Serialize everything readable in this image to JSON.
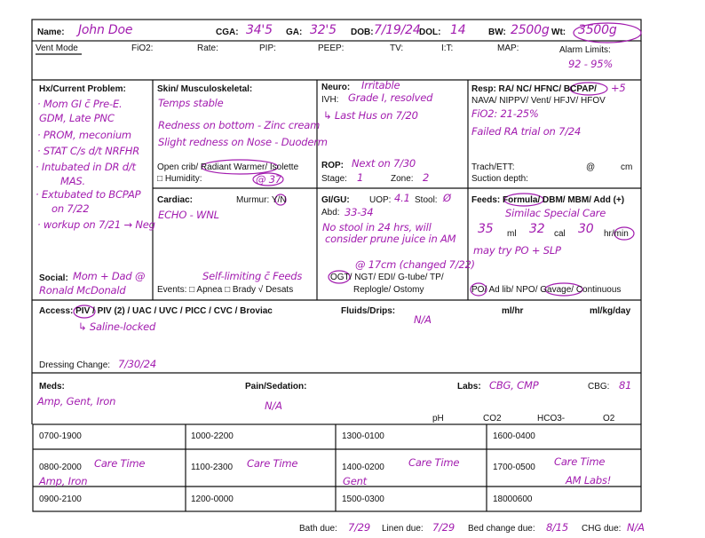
{
  "header": {
    "name_label": "Name:",
    "name": "John Doe",
    "cga_label": "CGA:",
    "cga": "34'5",
    "ga_label": "GA:",
    "ga": "32'5",
    "dob_label": "DOB:",
    "dob": "7/19/24",
    "dol_label": "DOL:",
    "dol": "14",
    "bw_label": "BW:",
    "bw": "2500g",
    "wt_label": "Wt:",
    "wt": "3500g"
  },
  "vent": {
    "mode": "Vent Mode",
    "fio2": "FiO2:",
    "rate": "Rate:",
    "pip": "PIP:",
    "peep": "PEEP:",
    "tv": "TV:",
    "it": "I:T:",
    "map": "MAP:",
    "alarm_label": "Alarm Limits:",
    "alarm": "92 - 95%"
  },
  "hx": {
    "label": "Hx/Current Problem:",
    "notes": [
      "· Mom GI c̄ Pre-E.",
      "GDM, Late PNC",
      "· PROM, meconium",
      "· STAT C/s d/t NRFHR",
      "· Intubated in DR d/t",
      "MAS.",
      "· Extubated to BCPAP",
      "on 7/22",
      "· workup on 7/21 → Neg"
    ]
  },
  "social": {
    "label": "Social:",
    "notes": [
      "Mom + Dad @",
      "Ronald McDonald"
    ]
  },
  "skin": {
    "label": "Skin/ Musculoskeletal:",
    "notes": [
      "Temps stable",
      "Redness on bottom - Zinc cream",
      "Slight redness on Nose - Duoderm"
    ],
    "bed": "Open crib/ Radiant Warmer/ Isolette",
    "humidity": "□ Humidity:",
    "humidity_value": "@ 37"
  },
  "cardiac": {
    "label": "Cardiac:",
    "murmur": "Murmur: Y/N",
    "note": "ECHO - WNL",
    "events_note": "Self-limiting c̄ Feeds",
    "events": "Events: □ Apnea □ Brady √ Desats"
  },
  "neuro": {
    "label": "Neuro:",
    "value": "Irritable",
    "ivh_label": "IVH:",
    "ivh": "Grade I, resolved",
    "hus": "↳ Last Hus on 7/20",
    "rop_label": "ROP:",
    "rop": "Next on 7/30",
    "stage_label": "Stage:",
    "stage": "1",
    "zone_label": "Zone:",
    "zone": "2"
  },
  "gi": {
    "label": "GI/GU:",
    "uop_label": "UOP:",
    "uop": "4.1",
    "stool_label": "Stool:",
    "stool": "Ø",
    "abd_label": "Abd:",
    "abd": "33-34",
    "notes": [
      "No stool in 24 hrs, will",
      "consider prune juice in AM"
    ],
    "tube_note": "@ 17cm (changed 7/22)",
    "tubes": [
      "OGT/ NGT/ EDI/ G-tube/ TP/",
      "Replogle/ Ostomy"
    ]
  },
  "resp": {
    "options": [
      "Resp: RA/ NC/ HFNC/ BCPAP/",
      "NAVA/ NIPPV/ Vent/ HFJV/ HFOV"
    ],
    "peep": "+5",
    "fio2": "FiO2: 21-25%",
    "note": "Failed RA trial on 7/24",
    "trach": "Trach/ETT:",
    "at": "@",
    "cm": "cm",
    "suction": "Suction depth:"
  },
  "feeds": {
    "options": "Feeds: Formula/ DBM/ MBM/ Add (+)",
    "formula": "Similac Special Care",
    "ml": "35",
    "ml_label": "ml",
    "cal": "32",
    "cal_label": "cal",
    "rate": "30",
    "rate_label": "hr/min",
    "note": "may try PO + SLP",
    "route": "PO/ Ad lib/ NPO/ Gavage/ Continuous"
  },
  "access": {
    "options": "Access: PIV / PIV (2) / UAC / UVC / PICC / CVC / Broviac",
    "note": "↳ Saline-locked",
    "fluids_label": "Fluids/Drips:",
    "fluids": "N/A",
    "mlhr": "ml/hr",
    "mlkgday": "ml/kg/day",
    "dressing_label": "Dressing Change:",
    "dressing": "7/30/24"
  },
  "meds": {
    "label": "Meds:",
    "value": "Amp, Gent, Iron",
    "pain_label": "Pain/Sedation:",
    "pain": "N/A",
    "labs_label": "Labs:",
    "labs": "CBG, CMP",
    "cbg_label": "CBG:",
    "cbg": "81",
    "gas": [
      "pH",
      "CO2",
      "HCO3-",
      "O2"
    ]
  },
  "schedule": {
    "rows": [
      [
        "0700-1900",
        "1000-2200",
        "1300-0100",
        "1600-0400"
      ],
      [
        "0800-2000",
        "1100-2300",
        "1400-0200",
        "1700-0500"
      ],
      [
        "0900-2100",
        "1200-0000",
        "1500-0300",
        "18000600"
      ]
    ],
    "notes": [
      [
        "Care Time",
        "Amp, Iron"
      ],
      [
        "Care Time"
      ],
      [
        "Care Time",
        "Gent"
      ],
      [
        "Care Time",
        "AM Labs!"
      ]
    ]
  },
  "footer": {
    "bath_label": "Bath due:",
    "bath": "7/29",
    "linen_label": "Linen due:",
    "linen": "7/29",
    "bed_label": "Bed change due:",
    "bed": "8/15",
    "chg_label": "CHG due:",
    "chg": "N/A"
  }
}
